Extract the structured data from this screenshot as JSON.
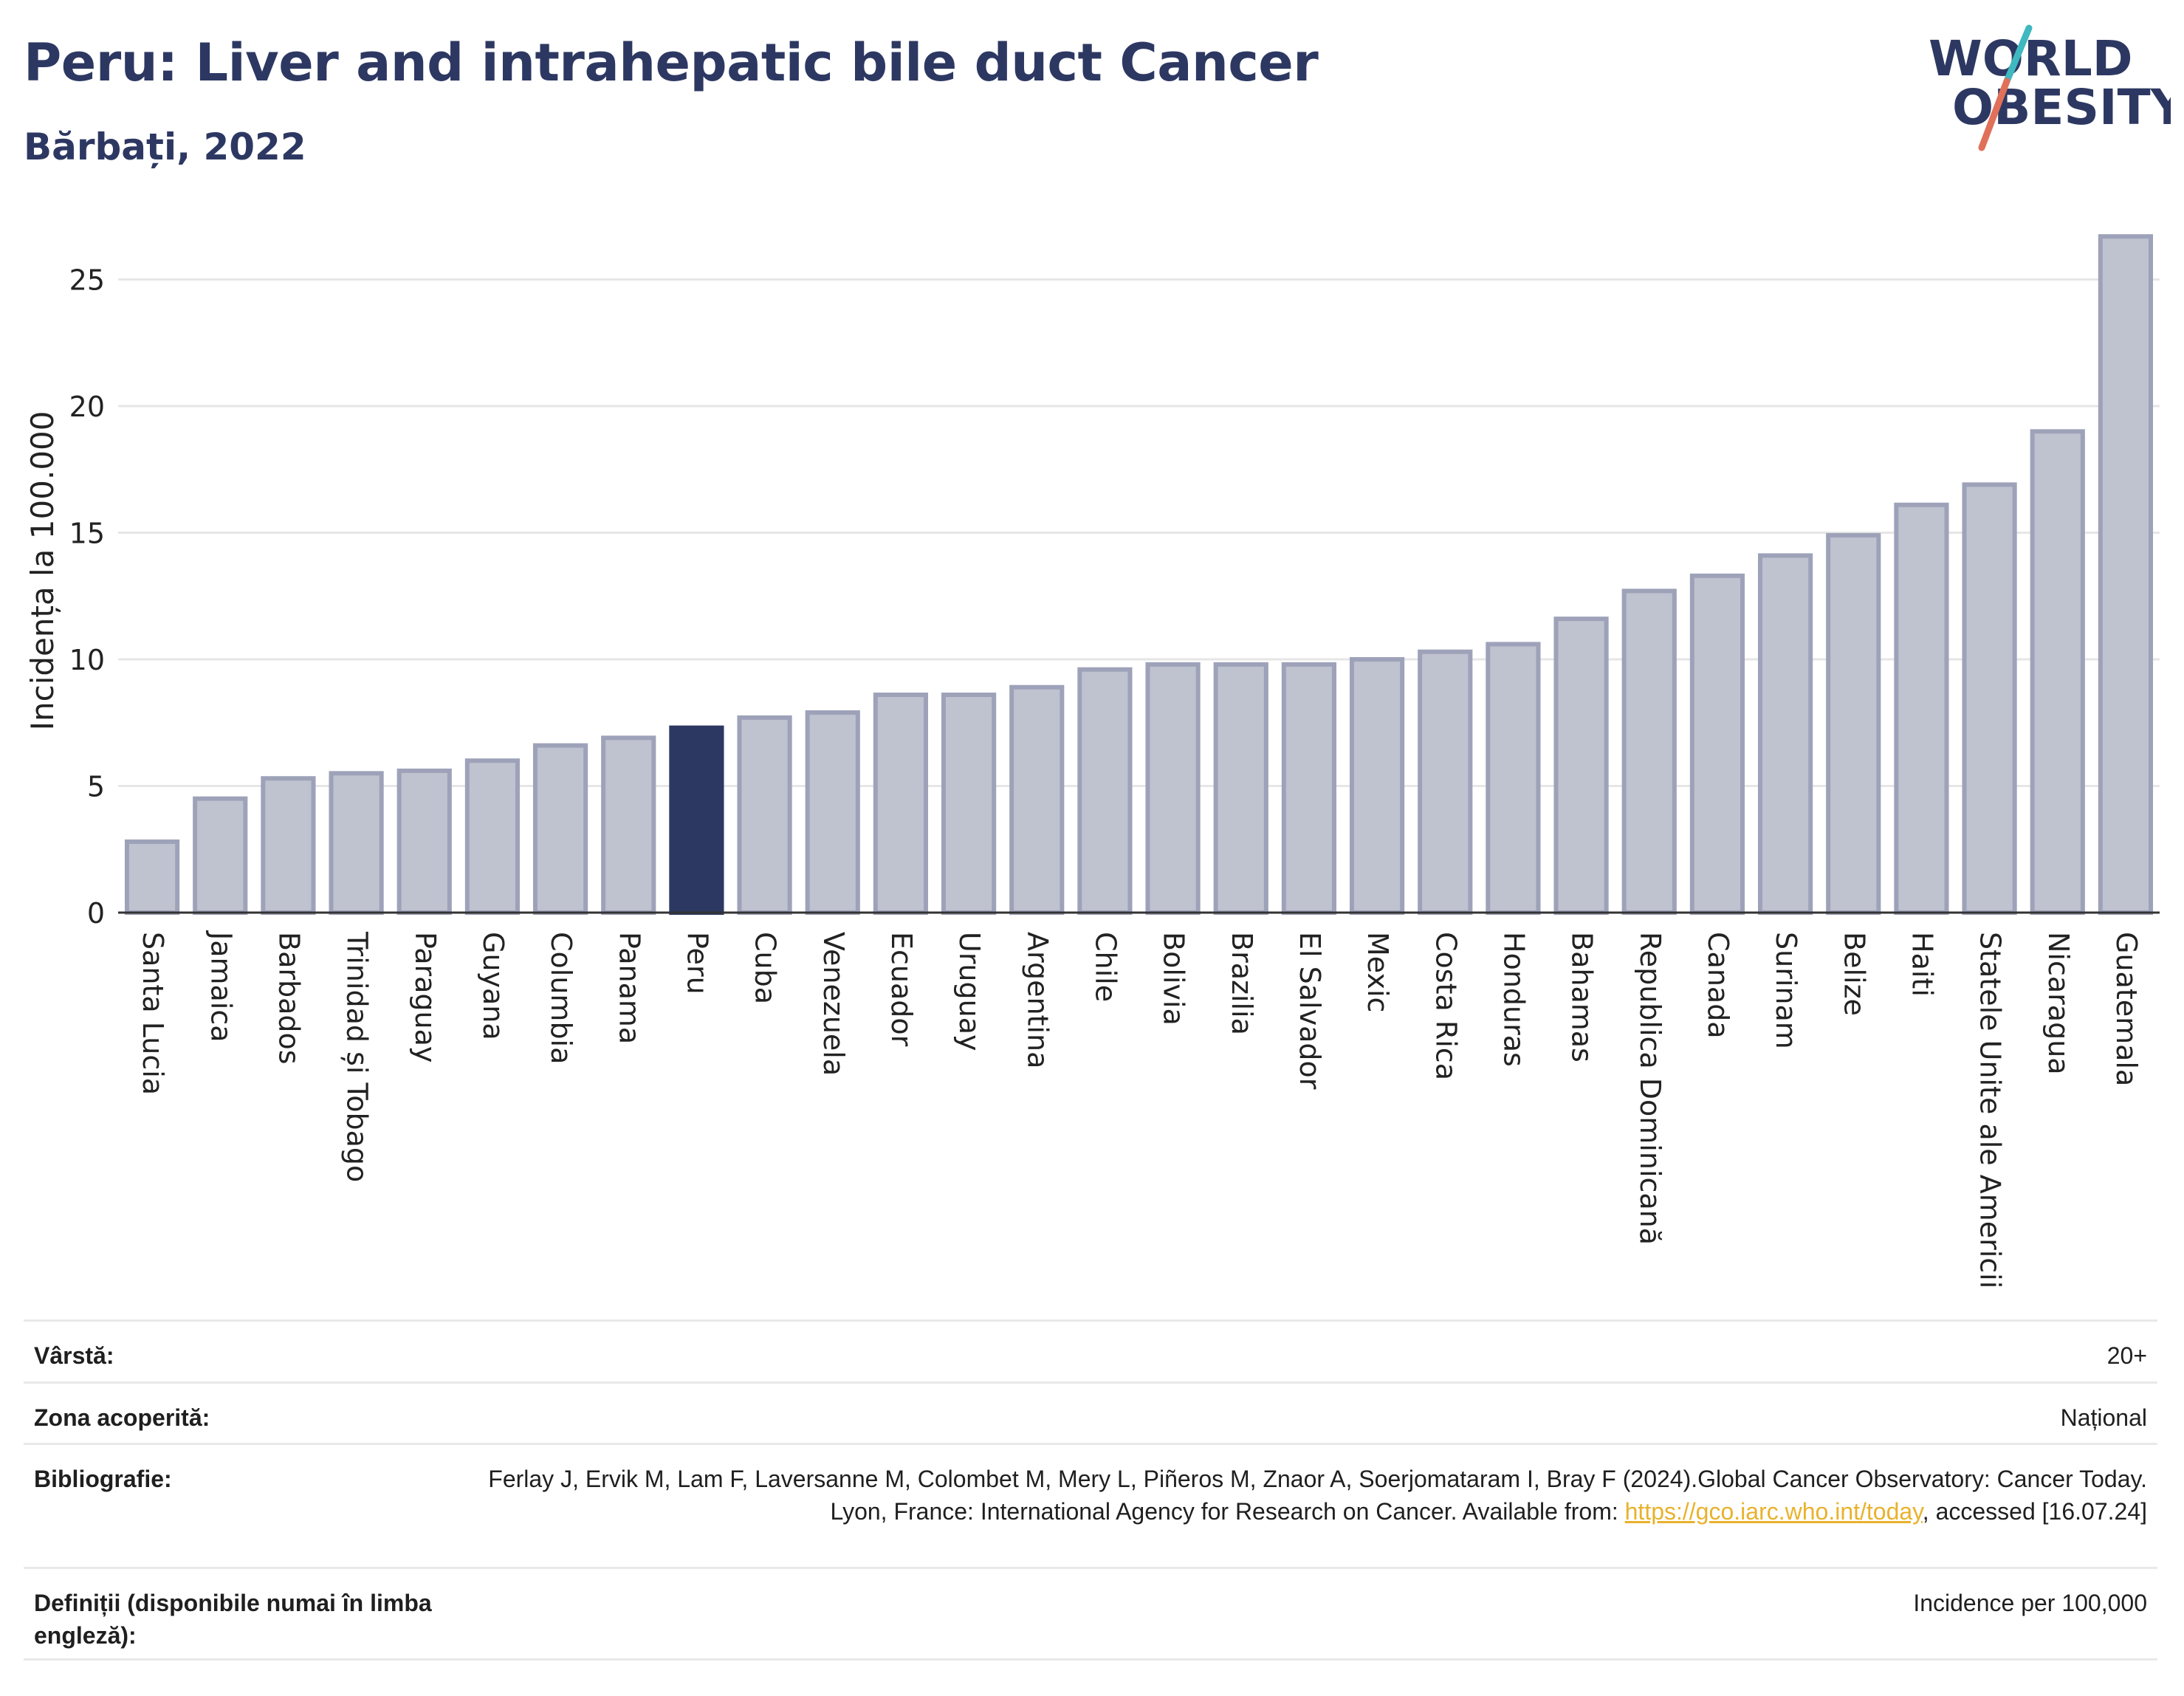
{
  "header": {
    "title": "Peru: Liver and intrahepatic bile duct Cancer",
    "subtitle": "Bărbați, 2022",
    "logo_line1": "WORLD",
    "logo_line2": "OBESITY"
  },
  "colors": {
    "title": "#2d3862",
    "bar": "#bfc2cf",
    "bar_outline": "#9ea2b9",
    "highlight": "#2d3862",
    "grid": "#e6e6e6",
    "logo_slash_teal": "#3fb8c0",
    "logo_slash_red": "#e0705a"
  },
  "chart_data": {
    "type": "bar",
    "ylabel": "Incidența la 100.000",
    "xlabel": "",
    "ylim": [
      0,
      27
    ],
    "yticks": [
      0,
      5,
      10,
      15,
      20,
      25
    ],
    "grid": true,
    "highlight_category": "Peru",
    "categories": [
      "Santa Lucia",
      "Jamaica",
      "Barbados",
      "Trinidad și Tobago",
      "Paraguay",
      "Guyana",
      "Columbia",
      "Panama",
      "Peru",
      "Cuba",
      "Venezuela",
      "Ecuador",
      "Uruguay",
      "Argentina",
      "Chile",
      "Bolivia",
      "Brazilia",
      "El Salvador",
      "Mexic",
      "Costa Rica",
      "Honduras",
      "Bahamas",
      "Republica Dominicană",
      "Canada",
      "Surinam",
      "Belize",
      "Haiti",
      "Statele Unite ale Americii",
      "Nicaragua",
      "Guatemala"
    ],
    "values": [
      2.8,
      4.5,
      5.3,
      5.5,
      5.6,
      6.0,
      6.6,
      6.9,
      7.3,
      7.7,
      7.9,
      8.6,
      8.6,
      8.9,
      9.6,
      9.8,
      9.8,
      9.8,
      10.0,
      10.3,
      10.6,
      11.6,
      12.7,
      13.3,
      14.1,
      14.9,
      16.1,
      16.9,
      19.0,
      26.7
    ]
  },
  "meta": {
    "age_label": "Vârstă:",
    "age_value": "20+",
    "coverage_label": "Zona acoperită:",
    "coverage_value": "Național",
    "bibliography_label": "Bibliografie:",
    "bibliography_text": "Ferlay J, Ervik M, Lam F, Laversanne M, Colombet M, Mery L, Piñeros M, Znaor A, Soerjomataram I, Bray F (2024).Global Cancer Observatory: Cancer Today. Lyon, France: International Agency for Research on Cancer. Available from:",
    "bibliography_link": "https://gco.iarc.who.int/today",
    "bibliography_suffix": ", accessed [16.07.24]",
    "definitions_label": "Definiții (disponibile numai în limba engleză):",
    "definitions_value": "Incidence per 100,000"
  }
}
